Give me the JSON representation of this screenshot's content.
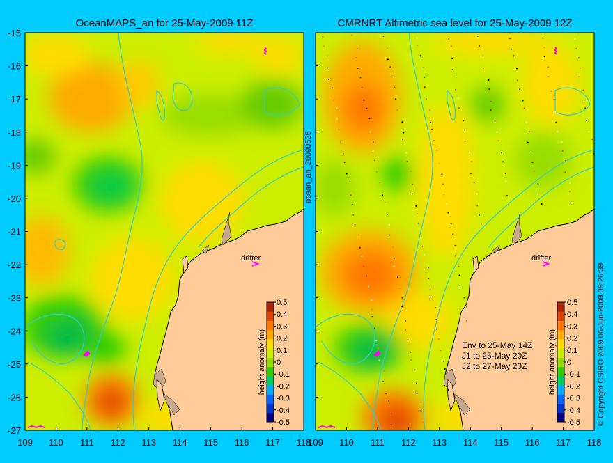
{
  "background_color": "#00ccff",
  "land_color": "#ffcc99",
  "reef_color": "#c8a88c",
  "coast_color": "#000000",
  "bathymetry_color": "#33cccc",
  "drifter_color": "#ff00ff",
  "y_ticks": [
    "-15",
    "-16",
    "-17",
    "-18",
    "-19",
    "-20",
    "-21",
    "-22",
    "-23",
    "-24",
    "-25",
    "-26",
    "-27"
  ],
  "x_ticks_left": [
    "109",
    "110",
    "111",
    "112",
    "113",
    "114",
    "115",
    "116",
    "117",
    "118"
  ],
  "x_ticks_right": [
    "109",
    "110",
    "111",
    "112",
    "113",
    "114",
    "115",
    "116",
    "117",
    "118"
  ],
  "panel_left": {
    "title": "OceanMAPS_an for 25-May-2009 11Z",
    "drifter_label": "drifter"
  },
  "panel_right": {
    "title": "CMRNRT Altimetric sea level  for 25-May-2009 12Z",
    "drifter_label": "drifter",
    "env_lines": [
      "Env to 25-May 14Z",
      "J1 to 25-May 20Z",
      "J2 to 27-May 20Z"
    ]
  },
  "side_label": "ocean_an_20090525",
  "copyright": "© Copyright CSIRO 2009   06-Jun-2009 09:26:39",
  "colorbar": {
    "label": "height anomaly (m)",
    "ticks": [
      "0.5",
      "0.4",
      "0.3",
      "0.2",
      "0.1",
      "0",
      "-0.1",
      "-0.2",
      "-0.3",
      "-0.4",
      "-0.5"
    ],
    "colors": [
      "#000080",
      "#0033cc",
      "#0066ff",
      "#00aaff",
      "#00cc66",
      "#33cc00",
      "#99dd00",
      "#ccee00",
      "#ffdd00",
      "#ffaa00",
      "#ff7700",
      "#dd4400",
      "#aa2200"
    ]
  },
  "map_data": {
    "lon_range": [
      109,
      118
    ],
    "lat_range": [
      -27,
      -15
    ],
    "anomaly_range": [
      -0.5,
      0.5
    ],
    "units": "m"
  }
}
